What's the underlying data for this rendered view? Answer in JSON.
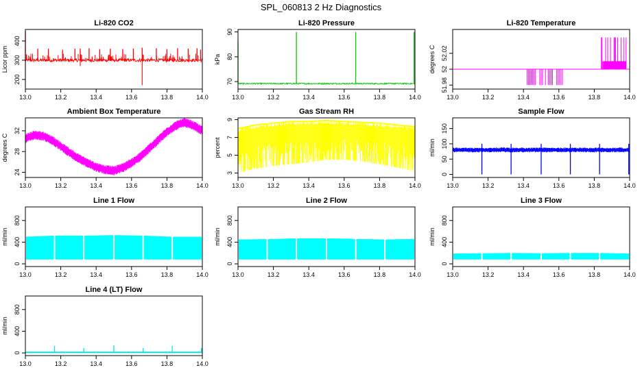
{
  "page": {
    "title": "SPL_060813  2 Hz Diagnostics"
  },
  "chart_data": [
    {
      "id": "co2",
      "type": "line",
      "title": "Li-820 CO2",
      "ylabel": "Licor ppm",
      "xlabel": "",
      "color": "#ff0000",
      "xlim": [
        13.0,
        14.0
      ],
      "ylim": [
        150,
        460
      ],
      "x_ticks": [
        13.0,
        13.2,
        13.4,
        13.6,
        13.8,
        14.0
      ],
      "y_ticks": [
        200,
        300,
        400
      ],
      "series": [
        {
          "name": "CO2",
          "baseline": 300,
          "noise": 8,
          "spikes_x": [
            13.0,
            13.07,
            13.13,
            13.21,
            13.28,
            13.31,
            13.36,
            13.42,
            13.48,
            13.55,
            13.61,
            13.66,
            13.74,
            13.8,
            13.86,
            13.92,
            13.97,
            13.99
          ],
          "spikes_y": [
            450,
            360,
            360,
            355,
            360,
            360,
            362,
            358,
            360,
            358,
            360,
            365,
            362,
            358,
            362,
            360,
            362,
            355
          ],
          "dips_x": [
            13.0,
            13.31,
            13.66
          ],
          "dips_y": [
            160,
            270,
            170
          ]
        }
      ]
    },
    {
      "id": "pressure",
      "type": "line",
      "title": "Li-820 Pressure",
      "ylabel": "kPa",
      "xlabel": "",
      "color": "#00cc00",
      "xlim": [
        13.0,
        14.0
      ],
      "ylim": [
        67,
        91
      ],
      "x_ticks": [
        13.0,
        13.2,
        13.4,
        13.6,
        13.8,
        14.0
      ],
      "y_ticks": [
        70,
        80,
        90
      ],
      "series": [
        {
          "name": "Pressure",
          "baseline": 69.2,
          "noise": 0.25,
          "spikes_x": [
            13.0,
            13.33,
            13.665,
            13.995
          ],
          "spikes_y": [
            86.5,
            90,
            90,
            90
          ],
          "dips_x": [],
          "dips_y": []
        }
      ]
    },
    {
      "id": "licor_temp",
      "type": "line",
      "title": "Li-820 Temperature",
      "ylabel": "degrees C",
      "xlabel": "",
      "color": "#ff00ff",
      "xlim": [
        13.0,
        14.0
      ],
      "ylim": [
        51.975,
        52.05
      ],
      "x_ticks": [
        13.0,
        13.2,
        13.4,
        13.6,
        13.8,
        14.0
      ],
      "y_ticks": [
        51.98,
        52.0,
        52.02
      ],
      "series": [
        {
          "name": "Temperature",
          "baseline": 52.0,
          "low_value": 51.98,
          "high_value": 52.01,
          "peak_value": 52.04,
          "low_start": 13.42,
          "low_end": 13.62,
          "high_start": 13.84,
          "high_end": 13.98
        }
      ]
    },
    {
      "id": "ambient_temp",
      "type": "line",
      "title": "Ambient Box Temperature",
      "ylabel": "degrees C",
      "xlabel": "",
      "color": "#ff00ff",
      "xlim": [
        13.0,
        14.0
      ],
      "ylim": [
        23,
        34.5
      ],
      "x_ticks": [
        13.0,
        13.2,
        13.4,
        13.6,
        13.8,
        14.0
      ],
      "y_ticks": [
        24,
        28,
        32
      ],
      "series": [
        {
          "name": "Ambient",
          "x": [
            13.0,
            13.05,
            13.1,
            13.15,
            13.2,
            13.25,
            13.3,
            13.35,
            13.4,
            13.45,
            13.5,
            13.55,
            13.6,
            13.65,
            13.7,
            13.75,
            13.8,
            13.85,
            13.9,
            13.95,
            14.0
          ],
          "y": [
            30.5,
            31.2,
            31.0,
            30.2,
            29.0,
            27.8,
            26.7,
            25.8,
            25.0,
            24.5,
            24.3,
            24.9,
            25.8,
            27.0,
            28.6,
            30.2,
            31.8,
            33.0,
            33.6,
            33.0,
            32.0
          ],
          "band": 0.9
        }
      ]
    },
    {
      "id": "gas_rh",
      "type": "line",
      "title": "Gas Stream RH",
      "ylabel": "percent",
      "xlabel": "",
      "color": "#ffff00",
      "xlim": [
        13.0,
        14.0
      ],
      "ylim": [
        2.5,
        9.2
      ],
      "x_ticks": [
        13.0,
        13.2,
        13.4,
        13.6,
        13.8,
        14.0
      ],
      "y_ticks": [
        3,
        5,
        7,
        9
      ],
      "series": [
        {
          "name": "RH",
          "x": [
            13.0,
            13.1,
            13.2,
            13.3,
            13.4,
            13.5,
            13.6,
            13.7,
            13.8,
            13.9,
            14.0
          ],
          "upper": [
            8.0,
            8.4,
            8.6,
            8.8,
            8.8,
            8.9,
            8.8,
            8.7,
            8.6,
            8.4,
            8.2
          ],
          "lower": [
            3.0,
            3.5,
            3.8,
            4.0,
            4.2,
            4.5,
            4.5,
            4.3,
            4.0,
            3.6,
            3.2
          ]
        }
      ]
    },
    {
      "id": "sample_flow",
      "type": "line",
      "title": "Sample Flow",
      "ylabel": "ml/min",
      "xlabel": "",
      "color": "#0000ff",
      "xlim": [
        13.0,
        14.0
      ],
      "ylim": [
        -10,
        185
      ],
      "x_ticks": [
        13.0,
        13.2,
        13.4,
        13.6,
        13.8,
        14.0
      ],
      "y_ticks": [
        0,
        50,
        100,
        150
      ],
      "series": [
        {
          "name": "Sample",
          "band_low": 72,
          "band_high": 88,
          "spikes_x": [
            13.165,
            13.33,
            13.5,
            13.665,
            13.83,
            13.995
          ],
          "dip_y": 0,
          "peak_y": 100
        }
      ]
    },
    {
      "id": "line1",
      "type": "bar",
      "title": "Line 1 Flow",
      "ylabel": "ml/min",
      "xlabel": "",
      "color": "#00ffff",
      "xlim": [
        13.0,
        14.0
      ],
      "ylim": [
        -50,
        1050
      ],
      "x_ticks": [
        13.0,
        13.2,
        13.4,
        13.6,
        13.8,
        14.0
      ],
      "y_ticks": [
        0,
        400,
        800
      ],
      "series": [
        {
          "name": "Line 1",
          "low": 80,
          "x": [
            13.0,
            13.165,
            13.33,
            13.5,
            13.665,
            13.83,
            14.0
          ],
          "high": [
            500,
            520,
            520,
            530,
            520,
            500,
            500
          ],
          "gaps_x": [
            13.165,
            13.33,
            13.5,
            13.665,
            13.83
          ]
        }
      ]
    },
    {
      "id": "line2",
      "type": "bar",
      "title": "Line 2 Flow",
      "ylabel": "ml/min",
      "xlabel": "",
      "color": "#00ffff",
      "xlim": [
        13.0,
        14.0
      ],
      "ylim": [
        -50,
        1050
      ],
      "x_ticks": [
        13.0,
        13.2,
        13.4,
        13.6,
        13.8,
        14.0
      ],
      "y_ticks": [
        0,
        400,
        800
      ],
      "series": [
        {
          "name": "Line 2",
          "low": 80,
          "x": [
            13.0,
            13.165,
            13.33,
            13.5,
            13.665,
            13.83,
            14.0
          ],
          "high": [
            450,
            455,
            470,
            470,
            460,
            450,
            460
          ],
          "gaps_x": [
            13.165,
            13.33,
            13.5,
            13.665,
            13.83
          ]
        }
      ]
    },
    {
      "id": "line3",
      "type": "bar",
      "title": "Line 3 Flow",
      "ylabel": "ml/min",
      "xlabel": "",
      "color": "#00ffff",
      "xlim": [
        13.0,
        14.0
      ],
      "ylim": [
        -50,
        1050
      ],
      "x_ticks": [
        13.0,
        13.2,
        13.4,
        13.6,
        13.8,
        14.0
      ],
      "y_ticks": [
        0,
        400,
        800
      ],
      "series": [
        {
          "name": "Line 3",
          "low": 80,
          "x": [
            13.0,
            13.165,
            13.33,
            13.5,
            13.665,
            13.83,
            14.0
          ],
          "high": [
            190,
            195,
            200,
            195,
            200,
            200,
            190
          ],
          "gaps_x": [
            13.165,
            13.33,
            13.5,
            13.665,
            13.83
          ]
        }
      ]
    },
    {
      "id": "line4",
      "type": "line",
      "title": "Line 4 (LT) Flow",
      "ylabel": "ml/min",
      "xlabel": "",
      "color": "#00e5e5",
      "xlim": [
        13.0,
        14.0
      ],
      "ylim": [
        -50,
        1050
      ],
      "x_ticks": [
        13.0,
        13.2,
        13.4,
        13.6,
        13.8,
        14.0
      ],
      "y_ticks": [
        0,
        400,
        800
      ],
      "series": [
        {
          "name": "Line 4",
          "baseline": 10,
          "spikes_x": [
            13.165,
            13.33,
            13.5,
            13.665,
            13.83,
            13.995
          ],
          "spikes_y": [
            130,
            90,
            140,
            90,
            130,
            90
          ]
        }
      ]
    }
  ]
}
